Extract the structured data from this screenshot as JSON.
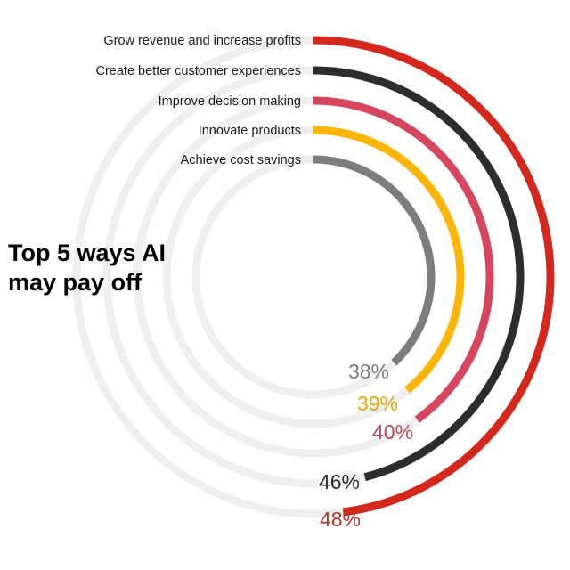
{
  "headline": {
    "line1": "Top 5 ways AI",
    "line2": "may pay off"
  },
  "chart_data": {
    "type": "radial-bar",
    "title": "Top 5 ways AI may pay off",
    "max": 50,
    "series": [
      {
        "name": "Grow revenue and increase profits",
        "value": 48,
        "label": "48%",
        "color": "#d4281c",
        "label_color": "#b3362a"
      },
      {
        "name": "Create better customer experiences",
        "value": 46,
        "label": "46%",
        "color": "#2d2d2d",
        "label_color": "#2d2d2d"
      },
      {
        "name": "Improve decision making",
        "value": 40,
        "label": "40%",
        "color": "#d6465f",
        "label_color": "#b84a5e"
      },
      {
        "name": "Innovate products",
        "value": 39,
        "label": "39%",
        "color": "#fbb507",
        "label_color": "#e8a800"
      },
      {
        "name": "Achieve cost savings",
        "value": 38,
        "label": "38%",
        "color": "#7d7d7d",
        "label_color": "#7d7d7d"
      }
    ]
  },
  "colors": {
    "track": "#efefef",
    "text": "#1a1a1a"
  }
}
